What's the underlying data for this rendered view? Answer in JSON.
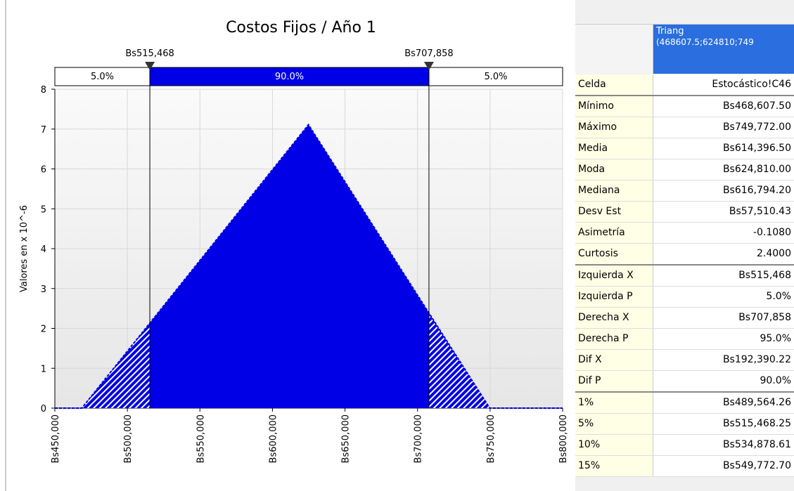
{
  "chart_data": {
    "type": "area",
    "title": "Costos Fijos / Año 1",
    "ylabel": "Valores en x 10^-6",
    "x": [
      450000,
      468607.5,
      624810,
      749772,
      800000
    ],
    "values": [
      0,
      0,
      7.11,
      0,
      0
    ],
    "color": "#0000e6",
    "xlim": [
      450000,
      800000
    ],
    "ylim": [
      0,
      8
    ],
    "xticks": [
      {
        "value": 450000,
        "label": "Bs450,000"
      },
      {
        "value": 500000,
        "label": "Bs500,000"
      },
      {
        "value": 550000,
        "label": "Bs550,000"
      },
      {
        "value": 600000,
        "label": "Bs600,000"
      },
      {
        "value": 650000,
        "label": "Bs650,000"
      },
      {
        "value": 700000,
        "label": "Bs700,000"
      },
      {
        "value": 750000,
        "label": "Bs750,000"
      },
      {
        "value": 800000,
        "label": "Bs800,000"
      }
    ],
    "yticks": [
      0,
      1,
      2,
      3,
      4,
      5,
      6,
      7,
      8
    ],
    "grid": true,
    "delimiters": {
      "values": [
        515468,
        707858
      ],
      "value_labels": [
        "Bs515,468",
        "Bs707,858"
      ]
    },
    "bands": {
      "values": [
        5,
        90,
        5
      ],
      "value_labels": [
        "5.0%",
        "90.0%",
        "5.0%"
      ]
    }
  },
  "table": {
    "header": [
      "Triang",
      "(468607.5;624810;749"
    ],
    "rows": [
      [
        "Celda",
        "Estocástico!C46"
      ],
      [
        "Mínimo",
        "Bs468,607.50"
      ],
      [
        "Máximo",
        "Bs749,772.00"
      ],
      [
        "Media",
        "Bs614,396.50"
      ],
      [
        "Moda",
        "Bs624,810.00"
      ],
      [
        "Mediana",
        "Bs616,794.20"
      ],
      [
        "Desv Est",
        "Bs57,510.43"
      ],
      [
        "Asimetría",
        "-0.1080"
      ],
      [
        "Curtosis",
        "2.4000"
      ],
      [
        "Izquierda X",
        "Bs515,468"
      ],
      [
        "Izquierda P",
        "5.0%"
      ],
      [
        "Derecha X",
        "Bs707,858"
      ],
      [
        "Derecha P",
        "95.0%"
      ],
      [
        "Dif X",
        "Bs192,390.22"
      ],
      [
        "Dif P",
        "90.0%"
      ],
      [
        "1%",
        "Bs489,564.26"
      ],
      [
        "5%",
        "Bs515,468.25"
      ],
      [
        "10%",
        "Bs534,878.61"
      ],
      [
        "15%",
        "Bs549,772.70"
      ]
    ]
  }
}
